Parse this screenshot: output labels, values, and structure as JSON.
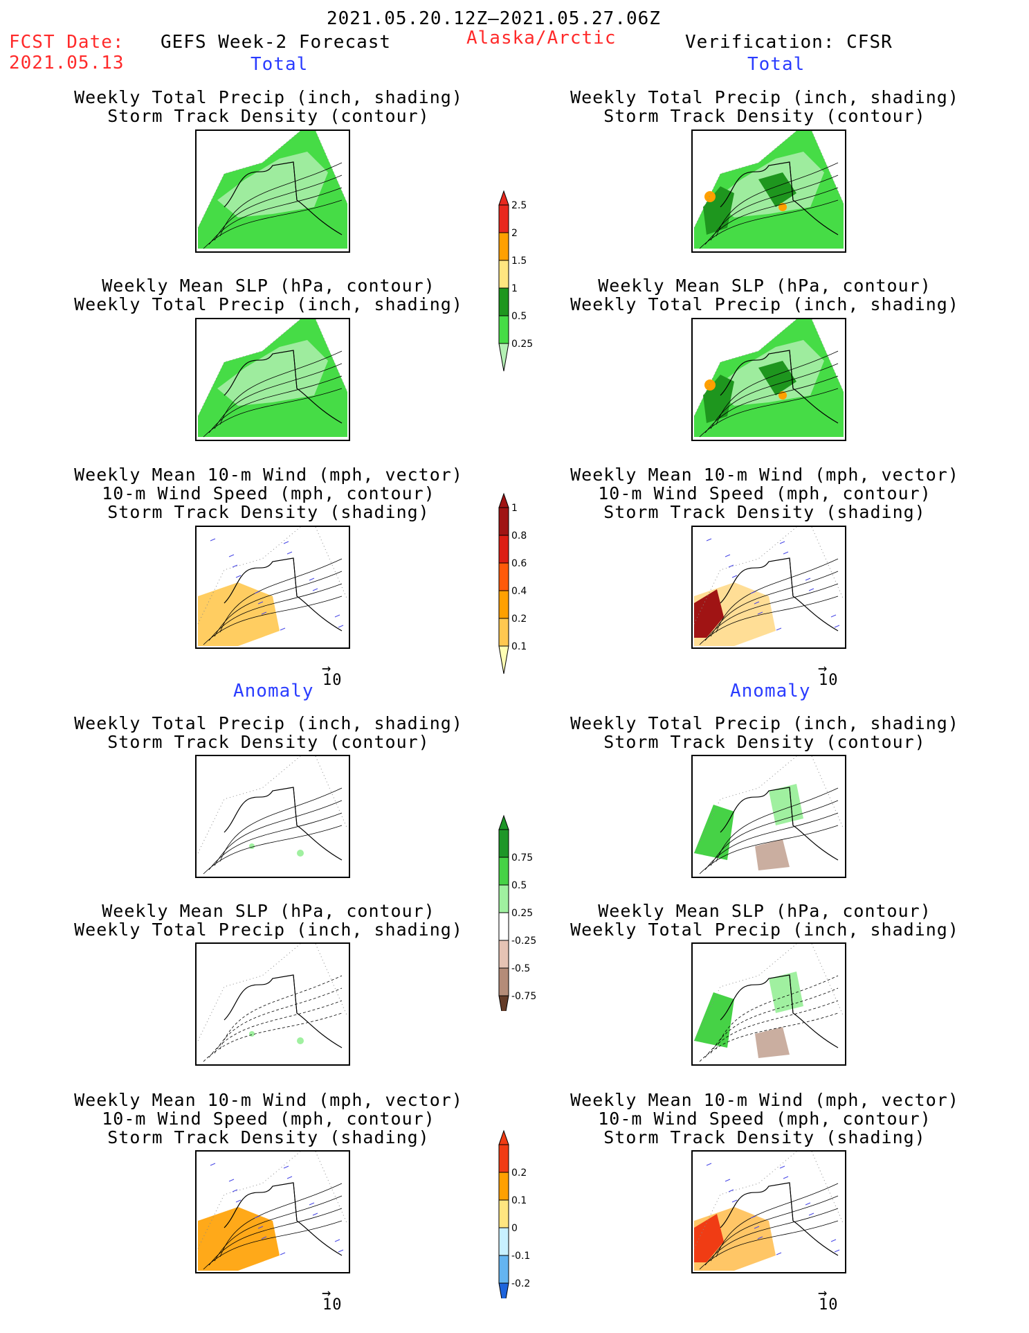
{
  "header": {
    "date_range": "2021.05.20.12Z–2021.05.27.06Z",
    "fcst_label": "FCST Date:",
    "fcst_date": "2021.05.13",
    "model": "GEFS Week-2 Forecast",
    "region": "Alaska/Arctic",
    "verification": "Verification: CFSR"
  },
  "sections": {
    "total": "Total",
    "anomaly": "Anomaly"
  },
  "panel_titles": {
    "precip_storm": [
      "Weekly Total Precip (inch, shading)",
      "Storm Track Density (contour)"
    ],
    "slp_precip": [
      "Weekly Mean SLP (hPa, contour)",
      "Weekly Total Precip (inch, shading)"
    ],
    "wind_storm": [
      "Weekly Mean 10-m Wind (mph, vector)",
      "10-m Wind Speed (mph, contour)",
      "Storm Track Density (shading)"
    ]
  },
  "vector_ref": "10",
  "colorbars": {
    "precip_total": {
      "labels": [
        "2.5",
        "2",
        "1.5",
        "1",
        "0.5",
        "0.25"
      ],
      "colors": [
        "#e8281e",
        "#ffa000",
        "#ffe680",
        "#1e961e",
        "#46dc46",
        "#b4f0b4"
      ]
    },
    "storm_total": {
      "labels": [
        "1",
        "0.8",
        "0.6",
        "0.4",
        "0.2",
        "0.1"
      ],
      "colors": [
        "#a01414",
        "#dc1e14",
        "#ff5a0a",
        "#ffa000",
        "#ffc850",
        "#ffffb4"
      ]
    },
    "precip_anom": {
      "labels": [
        "0.75",
        "0.5",
        "0.25",
        "-0.25",
        "-0.5",
        "-0.75"
      ],
      "colors": [
        "#1e9628",
        "#46d246",
        "#a0f0a0",
        "#ffffff",
        "#e6c3b4",
        "#b48c78",
        "#643c28"
      ]
    },
    "storm_anom": {
      "labels": [
        "0.2",
        "0.1",
        "0",
        "-0.1",
        "-0.2"
      ],
      "colors": [
        "#f03c14",
        "#ffa000",
        "#ffe680",
        "#c8f0ff",
        "#64b4f0",
        "#1e64dc"
      ]
    }
  }
}
